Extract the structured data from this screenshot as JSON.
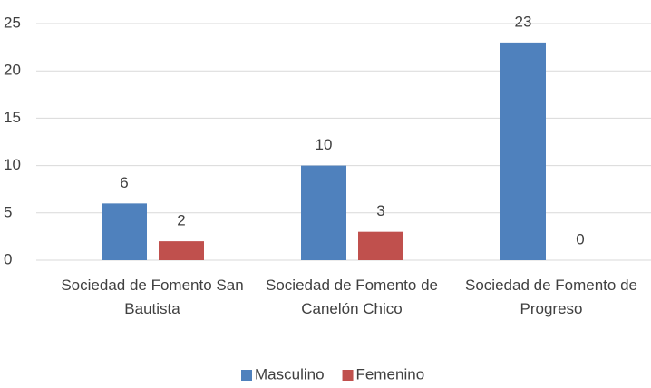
{
  "chart_data": {
    "type": "bar",
    "categories": [
      "Sociedad de Fomento San Bautista",
      "Sociedad de Fomento de Canelón Chico",
      "Sociedad de Fomento de Progreso"
    ],
    "series": [
      {
        "name": "Masculino",
        "color": "#4f81bd",
        "values": [
          6,
          10,
          23
        ]
      },
      {
        "name": "Femenino",
        "color": "#c0504d",
        "values": [
          2,
          3,
          0
        ]
      }
    ],
    "ylim": [
      0,
      25
    ],
    "yticks": [
      0,
      5,
      10,
      15,
      20,
      25
    ],
    "grid": true,
    "legend": "bottom"
  }
}
